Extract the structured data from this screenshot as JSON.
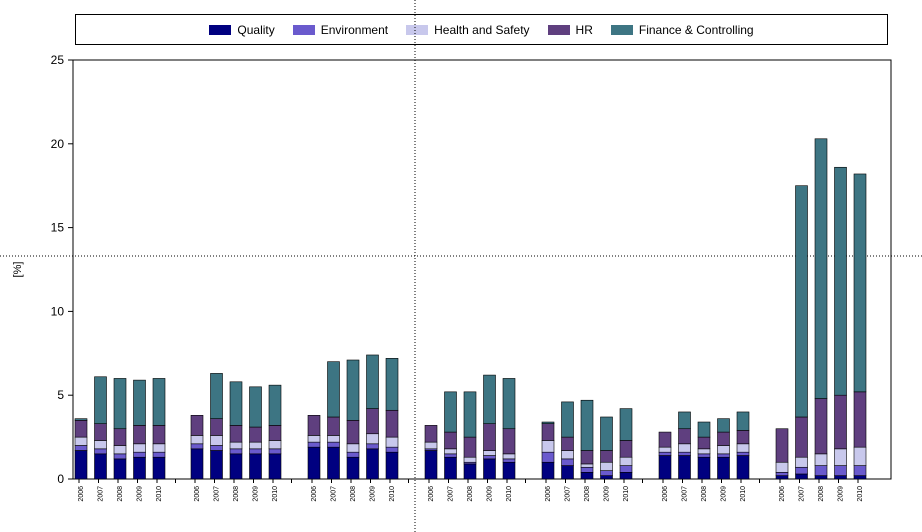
{
  "chart_data": {
    "type": "bar",
    "stacked": true,
    "ylabel": "[%]",
    "ylim": [
      0,
      25
    ],
    "yticks": [
      0,
      5,
      10,
      15,
      20,
      25
    ],
    "legend_position": "top",
    "groups": 7,
    "years": [
      "2006",
      "2007",
      "2008",
      "2009",
      "2010"
    ],
    "series": [
      {
        "name": "Quality",
        "color": "#000080",
        "values": [
          [
            1.7,
            1.5,
            1.2,
            1.3,
            1.3
          ],
          [
            1.8,
            1.7,
            1.5,
            1.5,
            1.5
          ],
          [
            1.9,
            1.9,
            1.3,
            1.8,
            1.6
          ],
          [
            1.7,
            1.3,
            0.9,
            1.2,
            1.0
          ],
          [
            1.0,
            0.8,
            0.4,
            0.2,
            0.4
          ],
          [
            1.4,
            1.4,
            1.3,
            1.3,
            1.4
          ],
          [
            0.2,
            0.3,
            0.2,
            0.2,
            0.2
          ]
        ]
      },
      {
        "name": "Environment",
        "color": "#6a5acd",
        "values": [
          [
            0.3,
            0.3,
            0.3,
            0.3,
            0.3
          ],
          [
            0.3,
            0.3,
            0.3,
            0.3,
            0.3
          ],
          [
            0.3,
            0.3,
            0.3,
            0.3,
            0.3
          ],
          [
            0.1,
            0.2,
            0.1,
            0.2,
            0.2
          ],
          [
            0.6,
            0.4,
            0.3,
            0.3,
            0.4
          ],
          [
            0.2,
            0.2,
            0.2,
            0.2,
            0.2
          ],
          [
            0.2,
            0.4,
            0.6,
            0.6,
            0.6
          ]
        ]
      },
      {
        "name": "Health and Safety",
        "color": "#c8c8ec",
        "values": [
          [
            0.5,
            0.5,
            0.5,
            0.5,
            0.5
          ],
          [
            0.5,
            0.6,
            0.4,
            0.4,
            0.5
          ],
          [
            0.4,
            0.4,
            0.5,
            0.6,
            0.6
          ],
          [
            0.4,
            0.3,
            0.3,
            0.3,
            0.3
          ],
          [
            0.7,
            0.5,
            0.2,
            0.5,
            0.5
          ],
          [
            0.3,
            0.5,
            0.3,
            0.5,
            0.5
          ],
          [
            0.6,
            0.6,
            0.7,
            1.0,
            1.1
          ]
        ]
      },
      {
        "name": "HR",
        "color": "#5f3f7f",
        "values": [
          [
            1.0,
            1.0,
            1.0,
            1.1,
            1.1
          ],
          [
            1.2,
            1.0,
            1.0,
            0.9,
            0.9
          ],
          [
            1.2,
            1.1,
            1.4,
            1.5,
            1.6
          ],
          [
            1.0,
            1.0,
            1.2,
            1.6,
            1.5
          ],
          [
            1.0,
            0.8,
            0.8,
            0.7,
            1.0
          ],
          [
            0.9,
            0.9,
            0.7,
            0.8,
            0.8
          ],
          [
            2.0,
            2.4,
            3.3,
            3.2,
            3.3
          ]
        ]
      },
      {
        "name": "Finance & Controlling",
        "color": "#3d7583",
        "values": [
          [
            0.1,
            2.8,
            3.0,
            2.7,
            2.8
          ],
          [
            0.0,
            2.7,
            2.6,
            2.4,
            2.4
          ],
          [
            0.0,
            3.3,
            3.6,
            3.2,
            3.1
          ],
          [
            0.0,
            2.4,
            2.7,
            2.9,
            3.0
          ],
          [
            0.1,
            2.1,
            3.0,
            2.0,
            1.9
          ],
          [
            0.0,
            1.0,
            0.9,
            0.8,
            1.1
          ],
          [
            0.0,
            13.8,
            15.5,
            13.6,
            13.0
          ]
        ]
      }
    ]
  }
}
